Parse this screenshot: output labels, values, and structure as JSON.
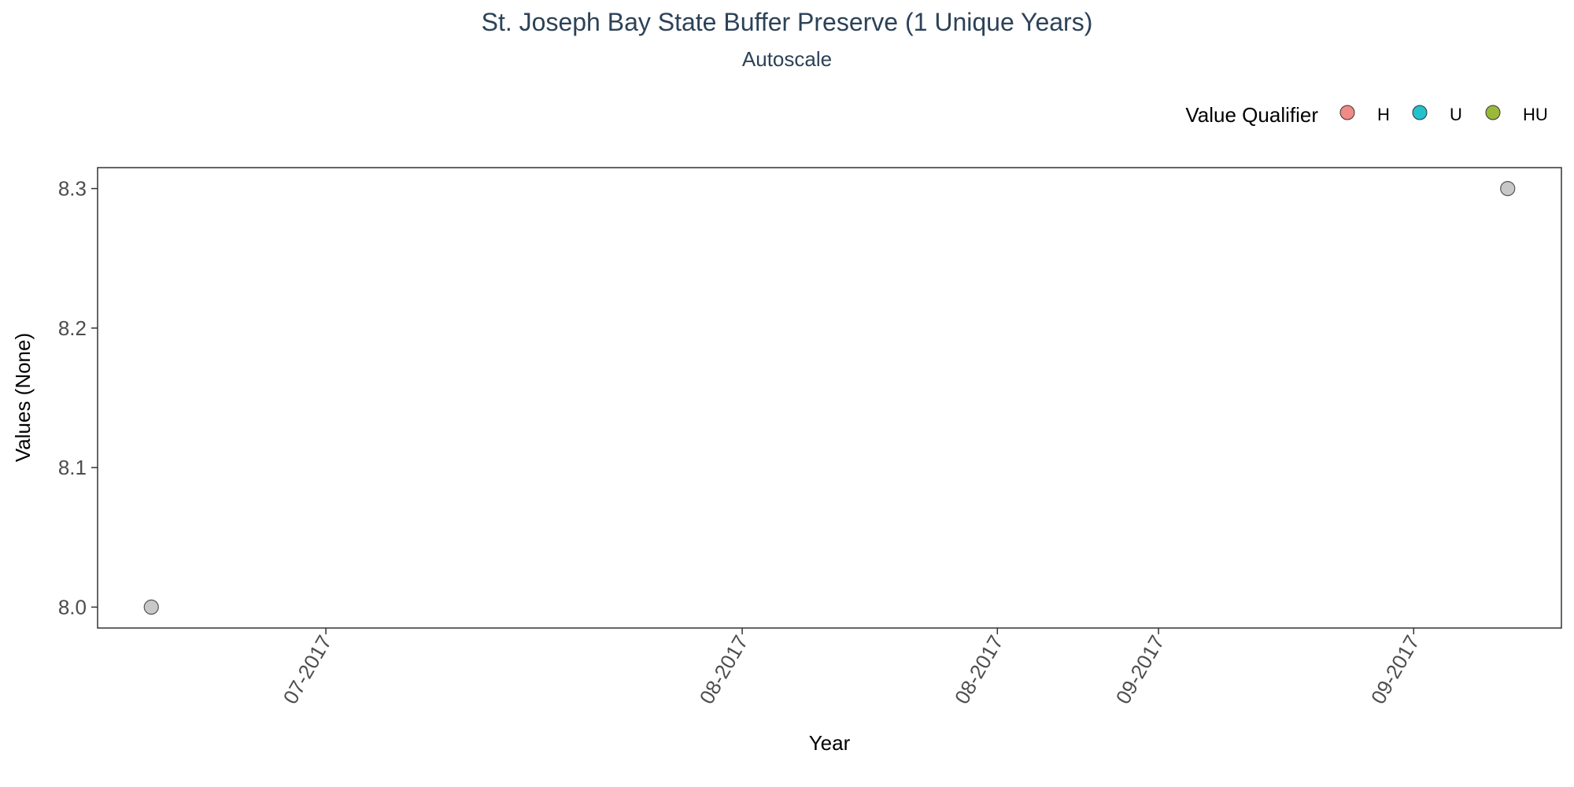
{
  "chart_data": {
    "type": "scatter",
    "title": "St. Joseph Bay State Buffer Preserve (1 Unique Years)",
    "subtitle": "Autoscale",
    "xlabel": "Year",
    "ylabel": "Values (None)",
    "x_tick_labels": [
      "07-2017",
      "08-2017",
      "08-2017",
      "09-2017",
      "09-2017"
    ],
    "x_tick_dates": [
      "2017-07-01",
      "2017-08-01",
      "2017-08-20",
      "2017-09-01",
      "2017-09-20"
    ],
    "y_ticks": [
      8.0,
      8.1,
      8.2,
      8.3
    ],
    "y_tick_labels": [
      "8.0",
      "8.1",
      "8.2",
      "8.3"
    ],
    "ylim": [
      7.985,
      8.315
    ],
    "xlim": [
      "2017-06-14",
      "2017-10-01"
    ],
    "legend": {
      "title": "Value Qualifier",
      "placement": "top-right",
      "items": [
        {
          "label": "H",
          "color": "#f08a84"
        },
        {
          "label": "U",
          "color": "#22c1cc"
        },
        {
          "label": "HU",
          "color": "#9ab83a"
        }
      ]
    },
    "series": [
      {
        "color": "#c8c8c8",
        "points": [
          {
            "x": "2017-06-18",
            "y": 8.0
          },
          {
            "x": "2017-09-27",
            "y": 8.3
          }
        ]
      }
    ],
    "grid": false
  }
}
